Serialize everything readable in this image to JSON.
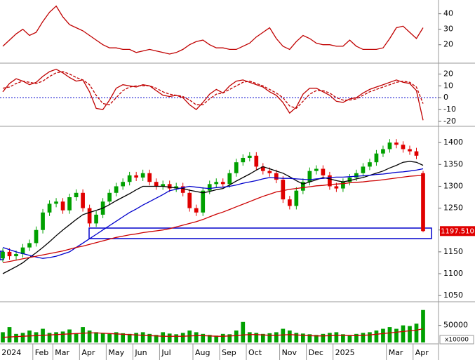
{
  "chart_data": [
    {
      "type": "line",
      "ylim": [
        9,
        48
      ],
      "yticks": [
        20,
        30,
        40
      ],
      "series": [
        {
          "color": "#c00000",
          "values": [
            19,
            23,
            27,
            30,
            26,
            28,
            35,
            41,
            45,
            38,
            33,
            31,
            29,
            26,
            23,
            20,
            18,
            18,
            17,
            17,
            15,
            16,
            17,
            16,
            15,
            14,
            15,
            17,
            20,
            22,
            23,
            20,
            18,
            18,
            17,
            17,
            19,
            21,
            25,
            28,
            31,
            24,
            19,
            17,
            22,
            26,
            24,
            21,
            20,
            20,
            19,
            19,
            23,
            19,
            17,
            17,
            17,
            18,
            24,
            31,
            32,
            28,
            24,
            31
          ]
        }
      ]
    },
    {
      "type": "line",
      "ylim": [
        -23,
        28
      ],
      "yticks": [
        -20,
        -10,
        0,
        10,
        20
      ],
      "reference": 0,
      "reference_color": "#0000cc",
      "series": [
        {
          "color": "#c00000",
          "dashed": false,
          "values": [
            5,
            12,
            16,
            14,
            11,
            13,
            18,
            22,
            24,
            21,
            17,
            14,
            15,
            5,
            -9,
            -10,
            -2,
            8,
            11,
            10,
            9,
            11,
            10,
            6,
            2,
            1,
            2,
            0,
            -6,
            -10,
            -4,
            3,
            7,
            4,
            10,
            14,
            15,
            13,
            11,
            9,
            5,
            2,
            -4,
            -13,
            -8,
            3,
            8,
            8,
            5,
            2,
            -3,
            -4,
            -1,
            0,
            4,
            7,
            9,
            11,
            13,
            15,
            13,
            12,
            6,
            -19
          ]
        },
        {
          "color": "#c00000",
          "dashed": true,
          "values": [
            8,
            9,
            12,
            14,
            13,
            12,
            14,
            18,
            21,
            22,
            20,
            17,
            15,
            11,
            2,
            -5,
            -6,
            0,
            6,
            9,
            10,
            10,
            10,
            8,
            5,
            3,
            2,
            1,
            -2,
            -6,
            -6,
            -1,
            3,
            4,
            7,
            10,
            13,
            14,
            12,
            10,
            7,
            4,
            0,
            -7,
            -9,
            -3,
            3,
            6,
            6,
            4,
            0,
            -2,
            -2,
            -1,
            2,
            5,
            7,
            9,
            11,
            13,
            14,
            13,
            9,
            -5
          ]
        }
      ]
    },
    {
      "type": "candlestick",
      "ylim": [
        1039,
        1434
      ],
      "yticks": [
        1050,
        1100,
        1150,
        1200,
        1250,
        1300,
        1350,
        1400
      ],
      "up_color": "#00a000",
      "down_color": "#e00000",
      "open": [
        1135,
        1150,
        1140,
        1145,
        1160,
        1170,
        1200,
        1240,
        1260,
        1265,
        1245,
        1275,
        1285,
        1250,
        1215,
        1235,
        1265,
        1285,
        1300,
        1310,
        1325,
        1320,
        1330,
        1310,
        1300,
        1305,
        1295,
        1300,
        1285,
        1250,
        1240,
        1290,
        1305,
        1310,
        1305,
        1330,
        1355,
        1365,
        1370,
        1345,
        1335,
        1330,
        1315,
        1270,
        1255,
        1290,
        1310,
        1335,
        1340,
        1325,
        1300,
        1295,
        1310,
        1320,
        1330,
        1345,
        1355,
        1375,
        1385,
        1400,
        1395,
        1385,
        1380,
        1330
      ],
      "high": [
        1158,
        1158,
        1153,
        1168,
        1178,
        1208,
        1248,
        1268,
        1273,
        1273,
        1283,
        1293,
        1293,
        1258,
        1243,
        1273,
        1293,
        1308,
        1318,
        1333,
        1333,
        1338,
        1338,
        1318,
        1313,
        1313,
        1308,
        1308,
        1293,
        1258,
        1298,
        1313,
        1318,
        1318,
        1338,
        1363,
        1373,
        1378,
        1378,
        1353,
        1343,
        1338,
        1323,
        1278,
        1298,
        1318,
        1343,
        1348,
        1348,
        1333,
        1308,
        1318,
        1328,
        1338,
        1353,
        1363,
        1383,
        1393,
        1408,
        1408,
        1403,
        1393,
        1388,
        1335
      ],
      "low": [
        1127,
        1132,
        1132,
        1137,
        1152,
        1162,
        1192,
        1232,
        1252,
        1237,
        1237,
        1267,
        1242,
        1207,
        1207,
        1227,
        1257,
        1277,
        1292,
        1302,
        1312,
        1312,
        1302,
        1292,
        1292,
        1287,
        1287,
        1277,
        1242,
        1232,
        1232,
        1282,
        1297,
        1297,
        1297,
        1322,
        1347,
        1357,
        1337,
        1327,
        1322,
        1307,
        1262,
        1247,
        1247,
        1282,
        1302,
        1327,
        1317,
        1292,
        1287,
        1287,
        1302,
        1312,
        1322,
        1337,
        1347,
        1367,
        1377,
        1387,
        1377,
        1372,
        1362,
        1195
      ],
      "close": [
        1150,
        1140,
        1145,
        1160,
        1170,
        1200,
        1240,
        1260,
        1265,
        1245,
        1275,
        1285,
        1250,
        1215,
        1235,
        1265,
        1285,
        1300,
        1310,
        1325,
        1320,
        1330,
        1310,
        1300,
        1305,
        1295,
        1300,
        1285,
        1250,
        1240,
        1290,
        1305,
        1310,
        1305,
        1330,
        1355,
        1365,
        1370,
        1345,
        1335,
        1330,
        1315,
        1270,
        1255,
        1290,
        1310,
        1335,
        1340,
        1325,
        1300,
        1295,
        1310,
        1320,
        1330,
        1345,
        1355,
        1375,
        1385,
        1400,
        1395,
        1385,
        1380,
        1370,
        1197.51
      ],
      "last_label": "1197.510",
      "last_label_color": "#e00000",
      "series": [
        {
          "color": "#000000",
          "values": [
            1100,
            1108,
            1116,
            1125,
            1137,
            1148,
            1160,
            1173,
            1187,
            1200,
            1212,
            1224,
            1235,
            1240,
            1245,
            1250,
            1258,
            1267,
            1275,
            1283,
            1292,
            1300,
            1300,
            1300,
            1300,
            1298,
            1296,
            1295,
            1291,
            1288,
            1285,
            1288,
            1292,
            1295,
            1303,
            1312,
            1320,
            1328,
            1337,
            1345,
            1340,
            1335,
            1330,
            1322,
            1313,
            1305,
            1310,
            1315,
            1320,
            1317,
            1313,
            1310,
            1313,
            1317,
            1320,
            1325,
            1330,
            1335,
            1342,
            1348,
            1355,
            1357,
            1355,
            1348
          ]
        },
        {
          "color": "#0000cc",
          "values": [
            1160,
            1155,
            1150,
            1146,
            1142,
            1138,
            1135,
            1137,
            1140,
            1145,
            1150,
            1160,
            1170,
            1180,
            1190,
            1200,
            1210,
            1220,
            1230,
            1240,
            1248,
            1257,
            1265,
            1273,
            1281,
            1290,
            1293,
            1297,
            1300,
            1298,
            1296,
            1295,
            1297,
            1298,
            1300,
            1303,
            1307,
            1310,
            1313,
            1317,
            1320,
            1319,
            1318,
            1318,
            1317,
            1316,
            1315,
            1317,
            1318,
            1320,
            1321,
            1321,
            1322,
            1323,
            1324,
            1325,
            1327,
            1328,
            1330,
            1332,
            1333,
            1335,
            1337,
            1340
          ]
        },
        {
          "color": "#cc0000",
          "values": [
            1125,
            1128,
            1131,
            1134,
            1137,
            1140,
            1143,
            1146,
            1149,
            1152,
            1156,
            1160,
            1163,
            1167,
            1171,
            1175,
            1179,
            1183,
            1186,
            1189,
            1191,
            1194,
            1196,
            1198,
            1200,
            1203,
            1207,
            1211,
            1215,
            1219,
            1224,
            1230,
            1236,
            1241,
            1247,
            1253,
            1259,
            1265,
            1271,
            1277,
            1282,
            1287,
            1290,
            1293,
            1295,
            1297,
            1299,
            1301,
            1302,
            1304,
            1305,
            1306,
            1308,
            1309,
            1310,
            1312,
            1313,
            1315,
            1317,
            1319,
            1321,
            1323,
            1324,
            1325
          ]
        }
      ]
    },
    {
      "type": "bar",
      "ylim": [
        0,
        115000
      ],
      "yticks": [
        50000
      ],
      "color": "#00a000",
      "unit_label": "x10000",
      "categories": [
        "2024",
        null,
        null,
        null,
        null,
        "Feb",
        null,
        null,
        "Mar",
        null,
        null,
        null,
        "Apr",
        null,
        null,
        null,
        "May",
        null,
        null,
        null,
        "Jun",
        null,
        null,
        null,
        "Jul",
        null,
        null,
        null,
        null,
        "Aug",
        null,
        null,
        null,
        "Sep",
        null,
        null,
        null,
        "Oct",
        null,
        null,
        null,
        null,
        "Nov",
        null,
        null,
        null,
        "Dec",
        null,
        null,
        null,
        "2025",
        null,
        null,
        null,
        null,
        null,
        null,
        null,
        "Mar",
        null,
        null,
        null,
        "Apr",
        null
      ],
      "values": [
        30000,
        45000,
        25000,
        28000,
        35000,
        30000,
        40000,
        28000,
        30000,
        32000,
        38000,
        27000,
        45000,
        35000,
        30000,
        28000,
        25000,
        30000,
        27000,
        25000,
        28000,
        30000,
        25000,
        22000,
        30000,
        26000,
        24000,
        28000,
        35000,
        30000,
        25000,
        22000,
        20000,
        25000,
        24000,
        35000,
        60000,
        30000,
        28000,
        25000,
        27000,
        30000,
        40000,
        35000,
        28000,
        26000,
        24000,
        22000,
        25000,
        28000,
        30000,
        24000,
        22000,
        25000,
        28000,
        30000,
        35000,
        40000,
        45000,
        40000,
        50000,
        48000,
        55000,
        95000
      ],
      "series": [
        {
          "color": "#cc0000",
          "values": [
            15000,
            16000,
            17000,
            18000,
            19000,
            20000,
            21000,
            22000,
            23000,
            24000,
            25000,
            26000,
            27000,
            28000,
            28000,
            27000,
            26000,
            25000,
            24000,
            23000,
            22000,
            21000,
            20000,
            19000,
            18000,
            18000,
            18000,
            18000,
            19000,
            20000,
            20000,
            19000,
            18000,
            18000,
            19000,
            20000,
            22000,
            23000,
            23000,
            22000,
            21000,
            21000,
            22000,
            23000,
            22000,
            21000,
            20000,
            19000,
            19000,
            20000,
            21000,
            21000,
            20000,
            20000,
            21000,
            22000,
            24000,
            26000,
            28000,
            30000,
            32000,
            34000,
            36000,
            40000
          ]
        }
      ]
    }
  ]
}
